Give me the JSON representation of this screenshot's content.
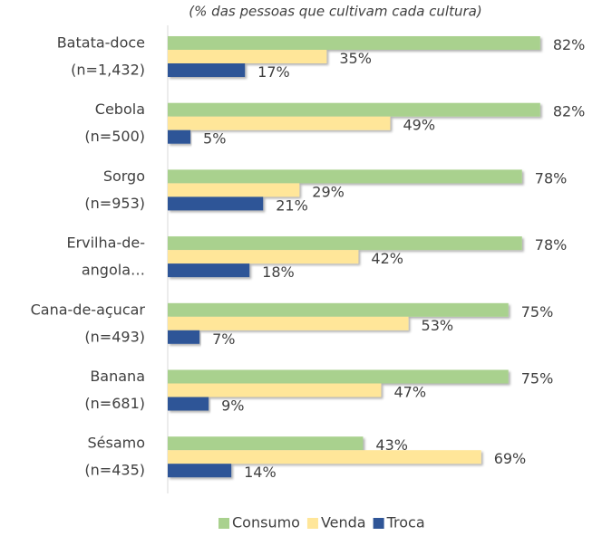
{
  "chart_data": {
    "type": "bar",
    "orientation": "horizontal",
    "subtitle": "(% das pessoas que cultivam cada cultura)",
    "categories": [
      [
        "Batata-doce",
        "(n=1,432)"
      ],
      [
        "Cebola",
        "(n=500)"
      ],
      [
        "Sorgo",
        "(n=953)"
      ],
      [
        "Ervilha-de-",
        "angola…"
      ],
      [
        "Cana-de-açucar",
        "(n=493)"
      ],
      [
        "Banana",
        "(n=681)"
      ],
      [
        "Sésamo",
        "(n=435)"
      ]
    ],
    "series": [
      {
        "name": "Consumo",
        "color": "#a9d18e",
        "values": [
          82,
          82,
          78,
          78,
          75,
          75,
          43
        ],
        "value_labels": [
          "82%",
          "82%",
          "78%",
          "78%",
          "75%",
          "75%",
          "43%"
        ]
      },
      {
        "name": "Venda",
        "color": "#ffe699",
        "values": [
          35,
          49,
          29,
          42,
          53,
          47,
          69
        ],
        "value_labels": [
          "35%",
          "49%",
          "29%",
          "42%",
          "53%",
          "47%",
          "69%"
        ]
      },
      {
        "name": "Troca",
        "color": "#2f5597",
        "values": [
          17,
          5,
          21,
          18,
          7,
          9,
          14
        ],
        "value_labels": [
          "17%",
          "5%",
          "21%",
          "18%",
          "7%",
          "9%",
          "14%"
        ]
      }
    ],
    "xlim": [
      0,
      100
    ],
    "legend": "bottom"
  }
}
